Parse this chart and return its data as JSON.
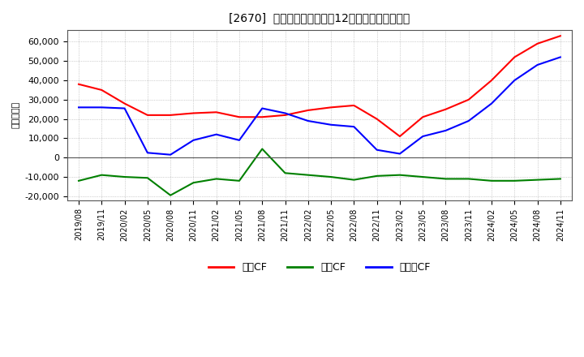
{
  "title": "[2670]  キャッシュフローの12か月移動合計の推移",
  "ylabel": "（百万円）",
  "background_color": "#ffffff",
  "plot_bg_color": "#ffffff",
  "grid_color": "#aaaaaa",
  "ylim": [
    -22000,
    66000
  ],
  "yticks": [
    -20000,
    -10000,
    0,
    10000,
    20000,
    30000,
    40000,
    50000,
    60000
  ],
  "xtick_labels": [
    "2019/08",
    "2019/11",
    "2020/02",
    "2020/05",
    "2020/08",
    "2020/11",
    "2021/02",
    "2021/05",
    "2021/08",
    "2021/11",
    "2022/02",
    "2022/05",
    "2022/08",
    "2022/11",
    "2023/02",
    "2023/05",
    "2023/08",
    "2023/11",
    "2024/02",
    "2024/05",
    "2024/08",
    "2024/11"
  ],
  "series": {
    "営業CF": {
      "color": "#ff0000",
      "values": [
        38000,
        35000,
        28000,
        22000,
        22000,
        23000,
        23500,
        21000,
        21000,
        22000,
        24500,
        26000,
        27000,
        20000,
        11000,
        21000,
        25000,
        30000,
        40000,
        52000,
        59000,
        63000
      ]
    },
    "投資CF": {
      "color": "#008000",
      "values": [
        -12000,
        -9000,
        -10000,
        -10500,
        -19500,
        -13000,
        -11000,
        -12000,
        4500,
        -8000,
        -9000,
        -10000,
        -11500,
        -9500,
        -9000,
        -10000,
        -11000,
        -11000,
        -12000,
        -12000,
        -11500,
        -11000
      ]
    },
    "フリーCF": {
      "color": "#0000ff",
      "values": [
        26000,
        26000,
        25500,
        2500,
        1500,
        9000,
        12000,
        9000,
        25500,
        23000,
        19000,
        17000,
        16000,
        4000,
        2000,
        11000,
        14000,
        19000,
        28000,
        40000,
        48000,
        52000
      ]
    }
  },
  "legend_labels": [
    "営業CF",
    "投資CF",
    "フリーCF"
  ],
  "legend_colors": [
    "#ff0000",
    "#008000",
    "#0000ff"
  ]
}
